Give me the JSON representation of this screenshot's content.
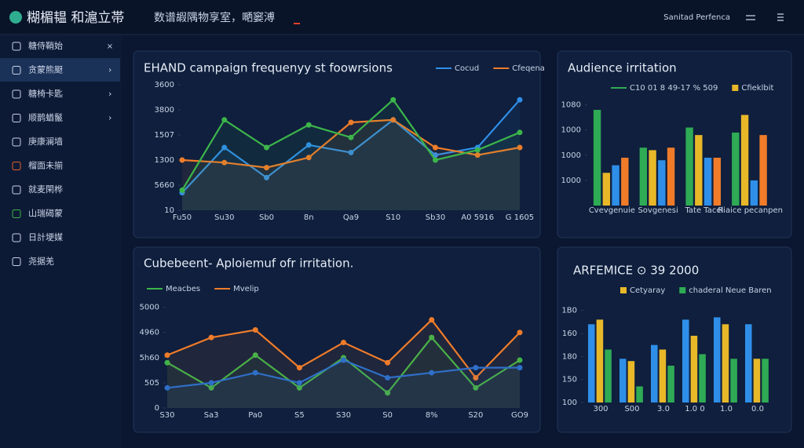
{
  "header": {
    "title": "糊楣韫 和滬立帯",
    "subtitle": "数谱嘏隅物享室，嗮窭溥",
    "user": "Sanitad Perfenca"
  },
  "sidebar": {
    "items": [
      "糖侍鞘始",
      "贪蒙熊颬",
      "糖椅卡匙",
      "顺鹊蝤鬣",
      "庚康澜墙",
      "榴面未揃",
      "就麦閑桦",
      "山瑞碣蒙",
      "日計埂媒",
      "尧据羌"
    ]
  },
  "chart_data": [
    {
      "type": "line",
      "title": "EHAND campaign frequenyy st foowrsions",
      "categories": [
        "Fu50",
        "Su30",
        "Sb0",
        "8n",
        "Qa9",
        "S10",
        "Sb30",
        "A0 5916",
        "G 1605"
      ],
      "series": [
        {
          "name": "Cocud",
          "color": "#2f8fe8",
          "values": [
            0.7,
            2.5,
            1.3,
            2.6,
            2.3,
            3.6,
            2.2,
            2.5,
            4.4
          ]
        },
        {
          "name": "Cfeqena",
          "color": "#f07c2a",
          "values": [
            2.0,
            1.9,
            1.7,
            2.1,
            3.5,
            3.6,
            2.5,
            2.2,
            2.5
          ]
        },
        {
          "color": "#3cb54a",
          "values": [
            0.8,
            3.6,
            2.5,
            3.4,
            2.9,
            4.4,
            2.0,
            2.4,
            3.1
          ]
        }
      ],
      "ylim": [
        0,
        5
      ],
      "yticks": [
        {
          "value": 0,
          "label": "10"
        },
        {
          "value": 1,
          "label": "5660"
        },
        {
          "value": 2,
          "label": "1300"
        },
        {
          "value": 3,
          "label": "1507"
        },
        {
          "value": 4,
          "label": "3800"
        },
        {
          "value": 5,
          "label": "3600"
        }
      ],
      "grid": false
    },
    {
      "type": "bar",
      "title": "Audience irritation",
      "categories": [
        "Cvevgenuie",
        "Sovgenesi",
        "Tate Tacel",
        "Riaice pecanpen"
      ],
      "series": [
        {
          "name": "C10 01 8 49-17 % 509",
          "color": "#2faa55",
          "values": [
            3.8,
            2.3,
            3.1,
            2.9
          ]
        },
        {
          "name": "Cfieklbit",
          "color": "#e8b829",
          "values": [
            1.3,
            2.2,
            2.8,
            3.6
          ]
        },
        {
          "color": "#2f8fe8",
          "values": [
            1.6,
            1.8,
            1.9,
            1.0
          ]
        },
        {
          "color": "#f07c2a",
          "values": [
            1.9,
            2.3,
            1.9,
            2.8
          ]
        }
      ],
      "ylim": [
        0,
        4.3
      ],
      "yticks": [
        {
          "value": 1,
          "label": "1000"
        },
        {
          "value": 2,
          "label": "1000"
        },
        {
          "value": 3,
          "label": "1000"
        },
        {
          "value": 4,
          "label": "1080"
        }
      ],
      "grid": false
    },
    {
      "type": "line",
      "title": "Cubebeent- Aploiemuf ofr irritation.",
      "categories": [
        "S30",
        "Sa3",
        "Pa0",
        "S5",
        "S30",
        "S0",
        "8%",
        "S20",
        "GO9"
      ],
      "series": [
        {
          "name": "Meacbes",
          "color": "#3cb54a",
          "values": [
            1.8,
            0.8,
            2.1,
            0.8,
            2.0,
            0.6,
            2.8,
            0.8,
            1.9
          ]
        },
        {
          "name": "Mvelip",
          "color": "#f07c2a",
          "values": [
            2.1,
            2.8,
            3.1,
            1.6,
            2.6,
            1.8,
            3.5,
            1.2,
            3.0
          ]
        },
        {
          "color": "#2f6fc8",
          "values": [
            0.8,
            1.0,
            1.4,
            1.0,
            1.9,
            1.2,
            1.4,
            1.6,
            1.6
          ]
        }
      ],
      "ylim": [
        0,
        4.3
      ],
      "yticks": [
        0,
        {
          "value": 1,
          "label": "505"
        },
        {
          "value": 2,
          "label": "5h60"
        },
        {
          "value": 3,
          "label": "4960"
        },
        {
          "value": 4,
          "label": "5000"
        }
      ],
      "grid": false
    },
    {
      "type": "bar",
      "title": "ARFEMICE ⊙ 39 2000",
      "categories": [
        "300",
        "S00",
        "3.0",
        "1.0 0",
        "1.0",
        "0.0"
      ],
      "series": [
        {
          "color": "#2f8fe8",
          "values": [
            3.4,
            1.9,
            2.5,
            3.6,
            3.7,
            3.4
          ]
        },
        {
          "name": "Cetyaray",
          "color": "#e8b829",
          "values": [
            3.6,
            1.8,
            2.3,
            2.9,
            3.4,
            1.9
          ]
        },
        {
          "name": "chaderal Neue Baren",
          "color": "#2faa55",
          "values": [
            2.3,
            0.7,
            1.6,
            2.1,
            1.9,
            1.9
          ]
        }
      ],
      "ylim": [
        0,
        4.5
      ],
      "yticks": [
        {
          "value": 0,
          "label": "100"
        },
        {
          "value": 1,
          "label": "150"
        },
        {
          "value": 2,
          "label": "180"
        },
        {
          "value": 3,
          "label": "160"
        },
        {
          "value": 4,
          "label": "1B0"
        }
      ],
      "grid": false
    }
  ]
}
